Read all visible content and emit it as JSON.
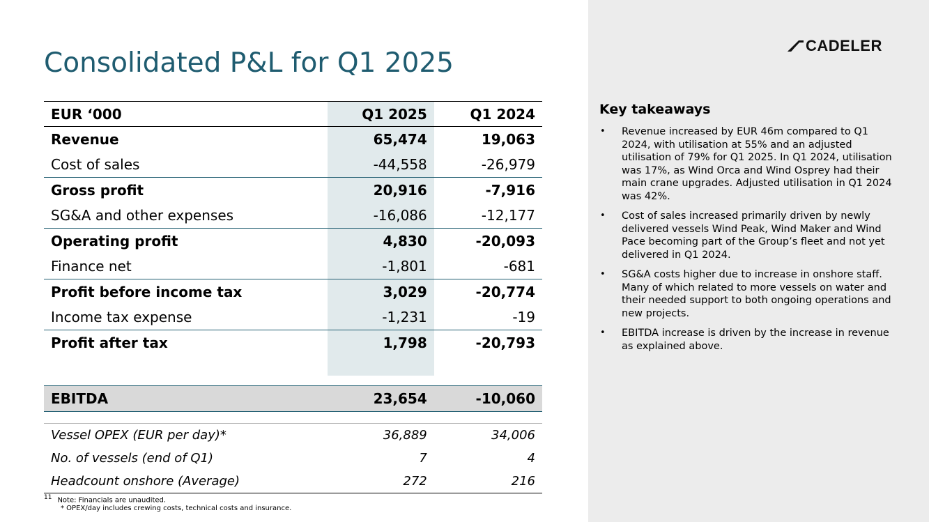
{
  "header": {
    "title": "Consolidated P&L for Q1 2025",
    "logo_text": "CADELER"
  },
  "table": {
    "columns": [
      "EUR ‘000",
      "Q1 2025",
      "Q1 2024"
    ],
    "rows": [
      {
        "label": "Revenue",
        "q1_2025": "65,474",
        "q1_2024": "19,063"
      },
      {
        "label": "Cost of sales",
        "q1_2025": "-44,558",
        "q1_2024": "-26,979"
      },
      {
        "label": "Gross profit",
        "q1_2025": "20,916",
        "q1_2024": "-7,916"
      },
      {
        "label": "SG&A and other expenses",
        "q1_2025": "-16,086",
        "q1_2024": "-12,177"
      },
      {
        "label": "Operating profit",
        "q1_2025": "4,830",
        "q1_2024": "-20,093"
      },
      {
        "label": "Finance net",
        "q1_2025": "-1,801",
        "q1_2024": "-681"
      },
      {
        "label": "Profit before income tax",
        "q1_2025": "3,029",
        "q1_2024": "-20,774"
      },
      {
        "label": "Income tax expense",
        "q1_2025": "-1,231",
        "q1_2024": "-19"
      },
      {
        "label": "Profit after tax",
        "q1_2025": "1,798",
        "q1_2024": "-20,793"
      }
    ],
    "ebitda": {
      "label": "EBITDA",
      "q1_2025": "23,654",
      "q1_2024": "-10,060"
    },
    "kpis": [
      {
        "label": "Vessel OPEX (EUR per day)*",
        "q1_2025": "36,889",
        "q1_2024": "34,006"
      },
      {
        "label": "No. of vessels (end of Q1)",
        "q1_2025": "7",
        "q1_2024": "4"
      },
      {
        "label": "Headcount onshore (Average)",
        "q1_2025": "272",
        "q1_2024": "216"
      }
    ]
  },
  "footnote": {
    "page_number": "11",
    "line1": "Note: Financials are unaudited.",
    "line2": "* OPEX/day includes crewing costs, technical costs and insurance."
  },
  "takeaways": {
    "heading": "Key takeaways",
    "bullets": [
      "Revenue increased by EUR 46m compared to Q1 2024, with utilisation at 55% and an adjusted utilisation of 79% for Q1 2025. In Q1 2024, utilisation was 17%, as Wind Orca and Wind Osprey had their main crane upgrades. Adjusted utilisation in Q1 2024 was 42%.",
      "Cost of sales increased primarily driven by newly delivered vessels Wind Peak, Wind Maker and Wind Pace becoming part of the Group’s fleet and not yet delivered in Q1 2024.",
      "SG&A costs higher due to increase in onshore staff. Many of which related to more vessels on water and their needed support to both ongoing operations and new projects.",
      "EBITDA increase is driven by the increase in revenue as explained above."
    ]
  },
  "colors": {
    "title": "#1f5c70",
    "highlight_column": "#e1eaec",
    "panel": "#ececec",
    "ebitda_row": "#d9d9d9"
  }
}
